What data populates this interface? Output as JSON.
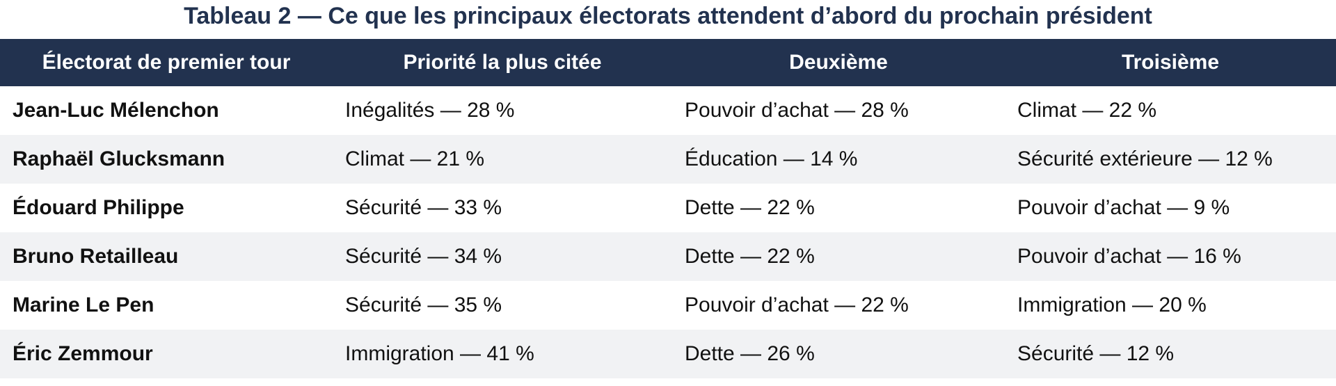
{
  "title": "Tableau 2 — Ce que les principaux électorats attendent d’abord du prochain président",
  "columns": [
    "Électorat de premier tour",
    "Priorité la plus citée",
    "Deuxième",
    "Troisième"
  ],
  "rows": [
    {
      "electorate": "Jean-Luc Mélenchon",
      "first": "Inégalités — 28 %",
      "second": "Pouvoir d’achat — 28 %",
      "third": "Climat — 22 %"
    },
    {
      "electorate": "Raphaël Glucksmann",
      "first": "Climat — 21 %",
      "second": "Éducation — 14 %",
      "third": "Sécurité extérieure — 12 %"
    },
    {
      "electorate": "Édouard Philippe",
      "first": "Sécurité — 33 %",
      "second": "Dette — 22 %",
      "third": "Pouvoir d’achat — 9 %"
    },
    {
      "electorate": "Bruno Retailleau",
      "first": "Sécurité — 34 %",
      "second": "Dette — 22 %",
      "third": "Pouvoir d’achat — 16 %"
    },
    {
      "electorate": "Marine Le Pen",
      "first": "Sécurité — 35 %",
      "second": "Pouvoir d’achat — 22 %",
      "third": "Immigration — 20 %"
    },
    {
      "electorate": "Éric Zemmour",
      "first": "Immigration — 41 %",
      "second": "Dette — 26 %",
      "third": "Sécurité — 12 %"
    }
  ],
  "colors": {
    "header_background": "#22324f",
    "title_text": "#22324f",
    "alternate_row": "#f1f2f4"
  }
}
